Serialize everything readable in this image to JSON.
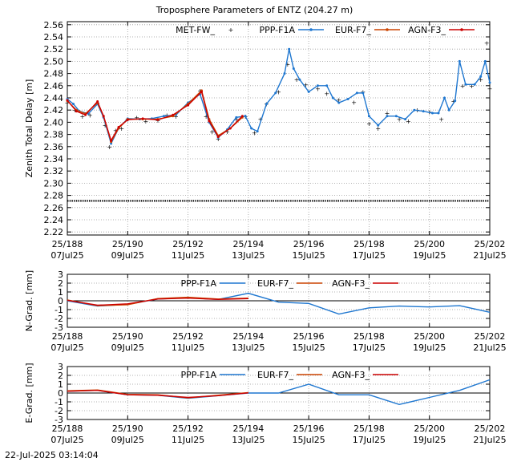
{
  "footer": {
    "timestamp": "22-Jul-2025 03:14:04"
  },
  "chart_data": [
    {
      "type": "line",
      "title": "Troposphere Parameters of ENTZ (204.27 m)",
      "ylabel": "Zenith Total Delay [m]",
      "xlim": [
        188,
        202
      ],
      "ylim": [
        2.215,
        2.565
      ],
      "yticks": [
        2.22,
        2.24,
        2.26,
        2.28,
        2.3,
        2.32,
        2.34,
        2.36,
        2.38,
        2.4,
        2.42,
        2.44,
        2.46,
        2.48,
        2.5,
        2.52,
        2.54,
        2.56
      ],
      "ytick_decimals": 2,
      "xticks": [
        {
          "x": 188,
          "doy": "25/188",
          "date": "07Jul25"
        },
        {
          "x": 190,
          "doy": "25/190",
          "date": "09Jul25"
        },
        {
          "x": 192,
          "doy": "25/192",
          "date": "11Jul25"
        },
        {
          "x": 194,
          "doy": "25/194",
          "date": "13Jul25"
        },
        {
          "x": 196,
          "doy": "25/196",
          "date": "15Jul25"
        },
        {
          "x": 198,
          "doy": "25/198",
          "date": "17Jul25"
        },
        {
          "x": 200,
          "doy": "25/200",
          "date": "19Jul25"
        },
        {
          "x": 202,
          "doy": "25/202",
          "date": "21Jul25"
        }
      ],
      "grid": true,
      "legend": "top",
      "series": [
        {
          "name": "MET-FW_",
          "color": "#00aa00",
          "style": "points",
          "points": [
            [
              188,
              2.432
            ],
            [
              188.25,
              2.42
            ],
            [
              188.5,
              2.41
            ],
            [
              188.75,
              2.412
            ],
            [
              189,
              2.432
            ],
            [
              189.25,
              2.395
            ],
            [
              189.4,
              2.36
            ],
            [
              189.6,
              2.387
            ],
            [
              189.8,
              2.39
            ],
            [
              190,
              2.405
            ],
            [
              190.3,
              2.408
            ],
            [
              190.6,
              2.402
            ],
            [
              191,
              2.403
            ],
            [
              191.3,
              2.412
            ],
            [
              191.6,
              2.41
            ],
            [
              192,
              2.43
            ],
            [
              192.4,
              2.452
            ],
            [
              192.6,
              2.41
            ],
            [
              192.8,
              2.385
            ],
            [
              193,
              2.373
            ],
            [
              193.3,
              2.385
            ],
            [
              193.6,
              2.405
            ],
            [
              193.9,
              2.41
            ],
            [
              194.2,
              2.383
            ],
            [
              194.4,
              2.405
            ],
            [
              194.6,
              2.43
            ],
            [
              195,
              2.45
            ],
            [
              195.3,
              2.495
            ],
            [
              195.6,
              2.47
            ],
            [
              195.9,
              2.462
            ],
            [
              196.3,
              2.455
            ],
            [
              196.6,
              2.447
            ],
            [
              197,
              2.437
            ],
            [
              197.5,
              2.433
            ],
            [
              197.8,
              2.45
            ],
            [
              198,
              2.398
            ],
            [
              198.3,
              2.39
            ],
            [
              198.6,
              2.415
            ],
            [
              199,
              2.405
            ],
            [
              199.3,
              2.402
            ],
            [
              199.6,
              2.42
            ],
            [
              200,
              2.417
            ],
            [
              200.4,
              2.405
            ],
            [
              200.8,
              2.435
            ],
            [
              201.1,
              2.46
            ],
            [
              201.4,
              2.46
            ],
            [
              201.7,
              2.47
            ],
            [
              201.9,
              2.53
            ],
            [
              202,
              2.455
            ]
          ]
        },
        {
          "name": "PPP-F1A",
          "color": "#1f77d0",
          "style": "line-markers",
          "points": [
            [
              188,
              2.438
            ],
            [
              188.2,
              2.43
            ],
            [
              188.4,
              2.418
            ],
            [
              188.7,
              2.414
            ],
            [
              189,
              2.43
            ],
            [
              189.2,
              2.408
            ],
            [
              189.45,
              2.365
            ],
            [
              189.7,
              2.39
            ],
            [
              190,
              2.406
            ],
            [
              190.4,
              2.405
            ],
            [
              190.8,
              2.406
            ],
            [
              191.2,
              2.41
            ],
            [
              191.6,
              2.412
            ],
            [
              192,
              2.432
            ],
            [
              192.4,
              2.446
            ],
            [
              192.7,
              2.4
            ],
            [
              193,
              2.375
            ],
            [
              193.3,
              2.388
            ],
            [
              193.6,
              2.408
            ],
            [
              193.9,
              2.41
            ],
            [
              194.1,
              2.39
            ],
            [
              194.3,
              2.385
            ],
            [
              194.6,
              2.43
            ],
            [
              194.9,
              2.448
            ],
            [
              195.2,
              2.48
            ],
            [
              195.35,
              2.52
            ],
            [
              195.5,
              2.488
            ],
            [
              195.7,
              2.47
            ],
            [
              196,
              2.45
            ],
            [
              196.3,
              2.46
            ],
            [
              196.6,
              2.46
            ],
            [
              196.8,
              2.44
            ],
            [
              197,
              2.432
            ],
            [
              197.3,
              2.438
            ],
            [
              197.6,
              2.448
            ],
            [
              197.8,
              2.448
            ],
            [
              198,
              2.41
            ],
            [
              198.3,
              2.395
            ],
            [
              198.6,
              2.41
            ],
            [
              198.9,
              2.41
            ],
            [
              199.2,
              2.405
            ],
            [
              199.5,
              2.42
            ],
            [
              199.8,
              2.418
            ],
            [
              200.1,
              2.415
            ],
            [
              200.3,
              2.415
            ],
            [
              200.5,
              2.44
            ],
            [
              200.65,
              2.42
            ],
            [
              200.85,
              2.435
            ],
            [
              201,
              2.5
            ],
            [
              201.2,
              2.462
            ],
            [
              201.5,
              2.462
            ],
            [
              201.7,
              2.475
            ],
            [
              201.85,
              2.5
            ],
            [
              202,
              2.465
            ]
          ]
        },
        {
          "name": "EUR-F7_",
          "color": "#cc4400",
          "style": "line-markers",
          "points": [
            [
              188,
              2.435
            ],
            [
              188.3,
              2.42
            ],
            [
              188.6,
              2.414
            ],
            [
              189,
              2.432
            ],
            [
              189.2,
              2.41
            ],
            [
              189.45,
              2.368
            ],
            [
              189.7,
              2.39
            ],
            [
              190,
              2.405
            ],
            [
              190.5,
              2.405
            ],
            [
              191,
              2.405
            ],
            [
              191.5,
              2.41
            ],
            [
              192,
              2.43
            ],
            [
              192.45,
              2.452
            ],
            [
              192.7,
              2.405
            ],
            [
              193,
              2.378
            ],
            [
              193.4,
              2.39
            ],
            [
              193.8,
              2.408
            ]
          ]
        },
        {
          "name": "AGN-F3_",
          "color": "#cc0000",
          "style": "line-markers",
          "points": [
            [
              188,
              2.436
            ],
            [
              188.3,
              2.418
            ],
            [
              188.6,
              2.412
            ],
            [
              189,
              2.434
            ],
            [
              189.2,
              2.41
            ],
            [
              189.45,
              2.37
            ],
            [
              189.7,
              2.392
            ],
            [
              190,
              2.404
            ],
            [
              190.5,
              2.406
            ],
            [
              191,
              2.404
            ],
            [
              191.5,
              2.412
            ],
            [
              192,
              2.428
            ],
            [
              192.45,
              2.45
            ],
            [
              192.7,
              2.402
            ],
            [
              193,
              2.376
            ],
            [
              193.4,
              2.39
            ],
            [
              193.8,
              2.41
            ]
          ]
        },
        {
          "name": "",
          "color": "#000000",
          "style": "points",
          "points": [
            [
              188,
              2.271
            ],
            [
              202,
              2.271
            ]
          ],
          "dense": true
        }
      ]
    },
    {
      "type": "line",
      "ylabel": "N-Grad. [mm]",
      "xlim": [
        188,
        202
      ],
      "ylim": [
        -3,
        3
      ],
      "yticks": [
        -3,
        -2,
        -1,
        0,
        1,
        2,
        3
      ],
      "ytick_decimals": 0,
      "xticks": [
        {
          "x": 188,
          "doy": "25/188",
          "date": "07Jul25"
        },
        {
          "x": 190,
          "doy": "25/190",
          "date": "09Jul25"
        },
        {
          "x": 192,
          "doy": "25/192",
          "date": "11Jul25"
        },
        {
          "x": 194,
          "doy": "25/194",
          "date": "13Jul25"
        },
        {
          "x": 196,
          "doy": "25/196",
          "date": "15Jul25"
        },
        {
          "x": 198,
          "doy": "25/198",
          "date": "17Jul25"
        },
        {
          "x": 200,
          "doy": "25/200",
          "date": "19Jul25"
        },
        {
          "x": 202,
          "doy": "25/202",
          "date": "21Jul25"
        }
      ],
      "grid": true,
      "zero_line": true,
      "legend": "top",
      "series": [
        {
          "name": "PPP-F1A",
          "color": "#1f77d0",
          "style": "line",
          "points": [
            [
              188,
              0
            ],
            [
              189,
              -0.6
            ],
            [
              190,
              -0.4
            ],
            [
              191,
              0.2
            ],
            [
              192,
              0.35
            ],
            [
              193,
              0.15
            ],
            [
              194,
              0.85
            ],
            [
              195,
              -0.15
            ],
            [
              196,
              -0.3
            ],
            [
              197,
              -1.5
            ],
            [
              198,
              -0.8
            ],
            [
              199,
              -0.6
            ],
            [
              200,
              -0.7
            ],
            [
              201,
              -0.55
            ],
            [
              202,
              -1.3
            ]
          ]
        },
        {
          "name": "EUR-F7_",
          "color": "#cc4400",
          "style": "line",
          "points": [
            [
              188,
              0.1
            ],
            [
              189,
              -0.55
            ],
            [
              190,
              -0.45
            ],
            [
              191,
              0.25
            ],
            [
              192,
              0.4
            ],
            [
              193,
              0.2
            ],
            [
              194,
              0.3
            ]
          ]
        },
        {
          "name": "AGN-F3_",
          "color": "#cc0000",
          "style": "line",
          "points": [
            [
              188,
              0.05
            ],
            [
              189,
              -0.5
            ],
            [
              190,
              -0.35
            ],
            [
              191,
              0.2
            ],
            [
              192,
              0.3
            ],
            [
              193,
              0.15
            ],
            [
              194,
              0.25
            ]
          ]
        }
      ]
    },
    {
      "type": "line",
      "ylabel": "E-Grad. [mm]",
      "xlim": [
        188,
        202
      ],
      "ylim": [
        -3,
        3
      ],
      "yticks": [
        -3,
        -2,
        -1,
        0,
        1,
        2,
        3
      ],
      "ytick_decimals": 0,
      "xticks": [
        {
          "x": 188,
          "doy": "25/188",
          "date": "07Jul25"
        },
        {
          "x": 190,
          "doy": "25/190",
          "date": "09Jul25"
        },
        {
          "x": 192,
          "doy": "25/192",
          "date": "11Jul25"
        },
        {
          "x": 194,
          "doy": "25/194",
          "date": "13Jul25"
        },
        {
          "x": 196,
          "doy": "25/196",
          "date": "15Jul25"
        },
        {
          "x": 198,
          "doy": "25/198",
          "date": "17Jul25"
        },
        {
          "x": 200,
          "doy": "25/200",
          "date": "19Jul25"
        },
        {
          "x": 202,
          "doy": "25/202",
          "date": "21Jul25"
        }
      ],
      "grid": true,
      "zero_line": true,
      "legend": "top",
      "series": [
        {
          "name": "PPP-F1A",
          "color": "#1f77d0",
          "style": "line",
          "points": [
            [
              188,
              0.2
            ],
            [
              189,
              0.3
            ],
            [
              190,
              -0.2
            ],
            [
              191,
              -0.25
            ],
            [
              192,
              -0.6
            ],
            [
              193,
              -0.3
            ],
            [
              194,
              0
            ],
            [
              195,
              0
            ],
            [
              196,
              1
            ],
            [
              197,
              -0.2
            ],
            [
              198,
              -0.2
            ],
            [
              199,
              -1.3
            ],
            [
              200,
              -0.5
            ],
            [
              201,
              0.3
            ],
            [
              202,
              1.5
            ]
          ]
        },
        {
          "name": "EUR-F7_",
          "color": "#cc4400",
          "style": "line",
          "points": [
            [
              188,
              0.25
            ],
            [
              189,
              0.35
            ],
            [
              190,
              -0.15
            ],
            [
              191,
              -0.2
            ],
            [
              192,
              -0.55
            ],
            [
              193,
              -0.25
            ],
            [
              194,
              0.05
            ]
          ]
        },
        {
          "name": "AGN-F3_",
          "color": "#cc0000",
          "style": "line",
          "points": [
            [
              188,
              0.2
            ],
            [
              189,
              0.3
            ],
            [
              190,
              -0.2
            ],
            [
              191,
              -0.25
            ],
            [
              192,
              -0.5
            ],
            [
              193,
              -0.3
            ],
            [
              194,
              0.02
            ]
          ]
        }
      ]
    }
  ]
}
